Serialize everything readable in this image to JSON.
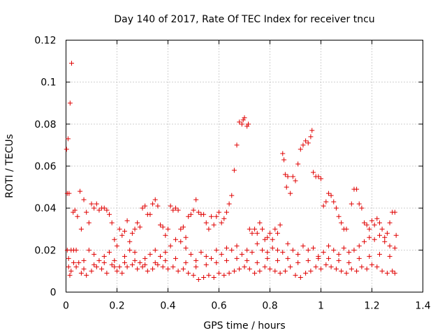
{
  "chart_data": {
    "type": "scatter",
    "title": "Day 140 of 2017, Rate Of TEC Index for receiver tncu",
    "xlabel": "GPS time / hours",
    "ylabel": "ROTI / TECUs",
    "xlim": [
      0,
      1.4
    ],
    "ylim": [
      0,
      0.12
    ],
    "xticks": [
      0,
      0.2,
      0.4,
      0.6,
      0.8,
      1,
      1.2,
      1.4
    ],
    "yticks": [
      0,
      0.02,
      0.04,
      0.06,
      0.08,
      0.1,
      0.12
    ],
    "xtick_labels": [
      "0",
      "0.2",
      "0.4",
      "0.6",
      "0.8",
      "1",
      "1.2",
      "1.4"
    ],
    "ytick_labels": [
      "0",
      "0.02",
      "0.04",
      "0.06",
      "0.08",
      "0.1",
      "0.12"
    ],
    "grid": true,
    "marker": "+",
    "marker_color": "#e00000",
    "series": [
      {
        "name": "ROTI",
        "points": [
          [
            0.002,
            0.068
          ],
          [
            0.005,
            0.047
          ],
          [
            0.008,
            0.073
          ],
          [
            0.012,
            0.047
          ],
          [
            0.016,
            0.09
          ],
          [
            0.022,
            0.109
          ],
          [
            0.005,
            0.02
          ],
          [
            0.01,
            0.012
          ],
          [
            0.015,
            0.008
          ],
          [
            0.02,
            0.02
          ],
          [
            0.028,
            0.038
          ],
          [
            0.035,
            0.039
          ],
          [
            0.04,
            0.02
          ],
          [
            0.045,
            0.036
          ],
          [
            0.055,
            0.048
          ],
          [
            0.06,
            0.03
          ],
          [
            0.07,
            0.044
          ],
          [
            0.08,
            0.038
          ],
          [
            0.09,
            0.033
          ],
          [
            0.1,
            0.042
          ],
          [
            0.11,
            0.04
          ],
          [
            0.12,
            0.042
          ],
          [
            0.13,
            0.039
          ],
          [
            0.14,
            0.04
          ],
          [
            0.15,
            0.04
          ],
          [
            0.16,
            0.039
          ],
          [
            0.17,
            0.037
          ],
          [
            0.18,
            0.033
          ],
          [
            0.19,
            0.025
          ],
          [
            0.2,
            0.022
          ],
          [
            0.21,
            0.03
          ],
          [
            0.22,
            0.027
          ],
          [
            0.23,
            0.029
          ],
          [
            0.24,
            0.034
          ],
          [
            0.25,
            0.024
          ],
          [
            0.26,
            0.028
          ],
          [
            0.27,
            0.03
          ],
          [
            0.28,
            0.033
          ],
          [
            0.29,
            0.031
          ],
          [
            0.3,
            0.04
          ],
          [
            0.31,
            0.041
          ],
          [
            0.32,
            0.037
          ],
          [
            0.33,
            0.037
          ],
          [
            0.34,
            0.042
          ],
          [
            0.35,
            0.044
          ],
          [
            0.36,
            0.041
          ],
          [
            0.37,
            0.032
          ],
          [
            0.38,
            0.031
          ],
          [
            0.39,
            0.027
          ],
          [
            0.4,
            0.03
          ],
          [
            0.41,
            0.041
          ],
          [
            0.42,
            0.039
          ],
          [
            0.43,
            0.04
          ],
          [
            0.44,
            0.039
          ],
          [
            0.45,
            0.03
          ],
          [
            0.46,
            0.031
          ],
          [
            0.47,
            0.026
          ],
          [
            0.48,
            0.036
          ],
          [
            0.49,
            0.037
          ],
          [
            0.5,
            0.039
          ],
          [
            0.51,
            0.044
          ],
          [
            0.52,
            0.038
          ],
          [
            0.53,
            0.037
          ],
          [
            0.54,
            0.037
          ],
          [
            0.55,
            0.033
          ],
          [
            0.56,
            0.03
          ],
          [
            0.57,
            0.036
          ],
          [
            0.58,
            0.032
          ],
          [
            0.59,
            0.036
          ],
          [
            0.6,
            0.038
          ],
          [
            0.61,
            0.033
          ],
          [
            0.62,
            0.035
          ],
          [
            0.63,
            0.038
          ],
          [
            0.64,
            0.042
          ],
          [
            0.65,
            0.046
          ],
          [
            0.66,
            0.058
          ],
          [
            0.67,
            0.07
          ],
          [
            0.68,
            0.081
          ],
          [
            0.69,
            0.08
          ],
          [
            0.695,
            0.082
          ],
          [
            0.7,
            0.083
          ],
          [
            0.71,
            0.079
          ],
          [
            0.715,
            0.08
          ],
          [
            0.72,
            0.03
          ],
          [
            0.73,
            0.028
          ],
          [
            0.74,
            0.03
          ],
          [
            0.75,
            0.028
          ],
          [
            0.76,
            0.033
          ],
          [
            0.77,
            0.03
          ],
          [
            0.78,
            0.025
          ],
          [
            0.79,
            0.026
          ],
          [
            0.8,
            0.028
          ],
          [
            0.81,
            0.025
          ],
          [
            0.82,
            0.03
          ],
          [
            0.83,
            0.028
          ],
          [
            0.84,
            0.032
          ],
          [
            0.85,
            0.066
          ],
          [
            0.855,
            0.063
          ],
          [
            0.86,
            0.056
          ],
          [
            0.865,
            0.05
          ],
          [
            0.87,
            0.055
          ],
          [
            0.88,
            0.047
          ],
          [
            0.89,
            0.055
          ],
          [
            0.9,
            0.053
          ],
          [
            0.91,
            0.061
          ],
          [
            0.92,
            0.068
          ],
          [
            0.93,
            0.07
          ],
          [
            0.94,
            0.072
          ],
          [
            0.95,
            0.071
          ],
          [
            0.96,
            0.074
          ],
          [
            0.965,
            0.077
          ],
          [
            0.97,
            0.057
          ],
          [
            0.98,
            0.055
          ],
          [
            0.99,
            0.055
          ],
          [
            1.0,
            0.054
          ],
          [
            1.01,
            0.041
          ],
          [
            1.02,
            0.043
          ],
          [
            1.03,
            0.047
          ],
          [
            1.04,
            0.046
          ],
          [
            1.05,
            0.043
          ],
          [
            1.06,
            0.04
          ],
          [
            1.07,
            0.036
          ],
          [
            1.08,
            0.033
          ],
          [
            1.09,
            0.03
          ],
          [
            1.1,
            0.03
          ],
          [
            1.12,
            0.042
          ],
          [
            1.13,
            0.049
          ],
          [
            1.14,
            0.049
          ],
          [
            1.15,
            0.042
          ],
          [
            1.16,
            0.04
          ],
          [
            1.17,
            0.033
          ],
          [
            1.18,
            0.032
          ],
          [
            1.19,
            0.03
          ],
          [
            1.2,
            0.034
          ],
          [
            1.21,
            0.032
          ],
          [
            1.22,
            0.035
          ],
          [
            1.23,
            0.033
          ],
          [
            1.24,
            0.03
          ],
          [
            1.25,
            0.026
          ],
          [
            1.26,
            0.028
          ],
          [
            1.27,
            0.033
          ],
          [
            1.28,
            0.038
          ],
          [
            1.29,
            0.038
          ],
          [
            1.295,
            0.027
          ],
          [
            0.01,
            0.016
          ],
          [
            0.03,
            0.02
          ],
          [
            0.05,
            0.014
          ],
          [
            0.07,
            0.011
          ],
          [
            0.09,
            0.02
          ],
          [
            0.11,
            0.018
          ],
          [
            0.13,
            0.015
          ],
          [
            0.15,
            0.017
          ],
          [
            0.17,
            0.019
          ],
          [
            0.19,
            0.015
          ],
          [
            0.21,
            0.012
          ],
          [
            0.23,
            0.017
          ],
          [
            0.25,
            0.02
          ],
          [
            0.27,
            0.019
          ],
          [
            0.29,
            0.014
          ],
          [
            0.31,
            0.016
          ],
          [
            0.33,
            0.018
          ],
          [
            0.35,
            0.02
          ],
          [
            0.37,
            0.017
          ],
          [
            0.39,
            0.019
          ],
          [
            0.41,
            0.022
          ],
          [
            0.43,
            0.025
          ],
          [
            0.45,
            0.024
          ],
          [
            0.47,
            0.021
          ],
          [
            0.49,
            0.018
          ],
          [
            0.51,
            0.015
          ],
          [
            0.53,
            0.019
          ],
          [
            0.55,
            0.017
          ],
          [
            0.57,
            0.016
          ],
          [
            0.59,
            0.02
          ],
          [
            0.61,
            0.018
          ],
          [
            0.63,
            0.021
          ],
          [
            0.65,
            0.02
          ],
          [
            0.67,
            0.022
          ],
          [
            0.69,
            0.018
          ],
          [
            0.71,
            0.02
          ],
          [
            0.73,
            0.019
          ],
          [
            0.75,
            0.023
          ],
          [
            0.77,
            0.02
          ],
          [
            0.79,
            0.019
          ],
          [
            0.81,
            0.021
          ],
          [
            0.83,
            0.02
          ],
          [
            0.85,
            0.019
          ],
          [
            0.87,
            0.023
          ],
          [
            0.89,
            0.02
          ],
          [
            0.91,
            0.018
          ],
          [
            0.93,
            0.022
          ],
          [
            0.95,
            0.02
          ],
          [
            0.97,
            0.021
          ],
          [
            0.99,
            0.016
          ],
          [
            1.01,
            0.019
          ],
          [
            1.03,
            0.022
          ],
          [
            1.05,
            0.02
          ],
          [
            1.07,
            0.018
          ],
          [
            1.09,
            0.021
          ],
          [
            1.11,
            0.019
          ],
          [
            1.13,
            0.02
          ],
          [
            1.15,
            0.022
          ],
          [
            1.17,
            0.024
          ],
          [
            1.19,
            0.026
          ],
          [
            1.21,
            0.025
          ],
          [
            1.23,
            0.027
          ],
          [
            1.25,
            0.024
          ],
          [
            1.27,
            0.022
          ],
          [
            1.29,
            0.021
          ],
          [
            0.02,
            0.01
          ],
          [
            0.04,
            0.012
          ],
          [
            0.06,
            0.009
          ],
          [
            0.08,
            0.008
          ],
          [
            0.1,
            0.01
          ],
          [
            0.12,
            0.012
          ],
          [
            0.14,
            0.011
          ],
          [
            0.16,
            0.009
          ],
          [
            0.18,
            0.013
          ],
          [
            0.2,
            0.01
          ],
          [
            0.22,
            0.009
          ],
          [
            0.24,
            0.012
          ],
          [
            0.26,
            0.013
          ],
          [
            0.28,
            0.011
          ],
          [
            0.3,
            0.012
          ],
          [
            0.32,
            0.01
          ],
          [
            0.34,
            0.011
          ],
          [
            0.36,
            0.013
          ],
          [
            0.38,
            0.012
          ],
          [
            0.4,
            0.011
          ],
          [
            0.42,
            0.012
          ],
          [
            0.44,
            0.01
          ],
          [
            0.46,
            0.011
          ],
          [
            0.48,
            0.009
          ],
          [
            0.5,
            0.008
          ],
          [
            0.52,
            0.006
          ],
          [
            0.54,
            0.007
          ],
          [
            0.56,
            0.008
          ],
          [
            0.58,
            0.007
          ],
          [
            0.6,
            0.009
          ],
          [
            0.62,
            0.008
          ],
          [
            0.64,
            0.009
          ],
          [
            0.66,
            0.01
          ],
          [
            0.68,
            0.011
          ],
          [
            0.7,
            0.012
          ],
          [
            0.72,
            0.011
          ],
          [
            0.74,
            0.009
          ],
          [
            0.76,
            0.01
          ],
          [
            0.78,
            0.012
          ],
          [
            0.8,
            0.011
          ],
          [
            0.82,
            0.01
          ],
          [
            0.84,
            0.009
          ],
          [
            0.86,
            0.01
          ],
          [
            0.88,
            0.012
          ],
          [
            0.9,
            0.008
          ],
          [
            0.92,
            0.007
          ],
          [
            0.94,
            0.009
          ],
          [
            0.96,
            0.01
          ],
          [
            0.98,
            0.012
          ],
          [
            1.0,
            0.011
          ],
          [
            1.02,
            0.013
          ],
          [
            1.04,
            0.012
          ],
          [
            1.06,
            0.011
          ],
          [
            1.08,
            0.01
          ],
          [
            1.1,
            0.009
          ],
          [
            1.12,
            0.011
          ],
          [
            1.14,
            0.01
          ],
          [
            1.16,
            0.012
          ],
          [
            1.18,
            0.011
          ],
          [
            1.2,
            0.013
          ],
          [
            1.22,
            0.012
          ],
          [
            1.24,
            0.01
          ],
          [
            1.26,
            0.009
          ],
          [
            1.28,
            0.01
          ],
          [
            1.29,
            0.009
          ],
          [
            0.03,
            0.014
          ],
          [
            0.07,
            0.015
          ],
          [
            0.11,
            0.013
          ],
          [
            0.15,
            0.014
          ],
          [
            0.19,
            0.012
          ],
          [
            0.23,
            0.014
          ],
          [
            0.27,
            0.015
          ],
          [
            0.31,
            0.013
          ],
          [
            0.35,
            0.014
          ],
          [
            0.39,
            0.015
          ],
          [
            0.43,
            0.016
          ],
          [
            0.47,
            0.014
          ],
          [
            0.51,
            0.012
          ],
          [
            0.55,
            0.013
          ],
          [
            0.59,
            0.014
          ],
          [
            0.63,
            0.015
          ],
          [
            0.67,
            0.016
          ],
          [
            0.71,
            0.015
          ],
          [
            0.75,
            0.014
          ],
          [
            0.79,
            0.016
          ],
          [
            0.83,
            0.015
          ],
          [
            0.87,
            0.016
          ],
          [
            0.91,
            0.014
          ],
          [
            0.95,
            0.015
          ],
          [
            0.99,
            0.017
          ],
          [
            1.03,
            0.016
          ],
          [
            1.07,
            0.015
          ],
          [
            1.11,
            0.014
          ],
          [
            1.15,
            0.016
          ],
          [
            1.19,
            0.017
          ],
          [
            1.23,
            0.018
          ],
          [
            1.27,
            0.017
          ]
        ]
      }
    ]
  }
}
